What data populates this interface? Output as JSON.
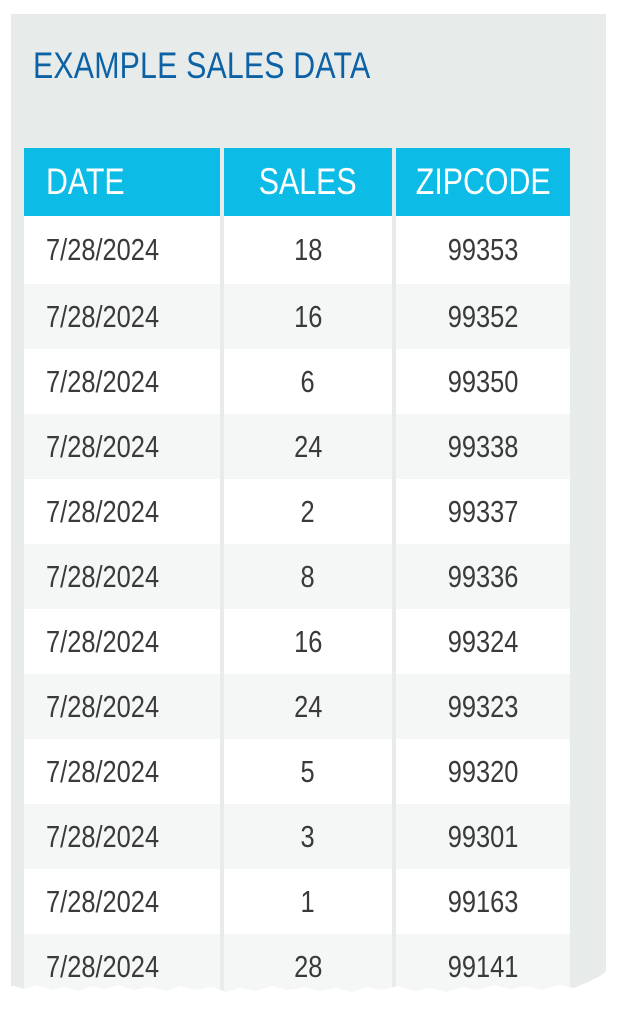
{
  "title": "EXAMPLE SALES DATA",
  "table": {
    "headers": {
      "date": "DATE",
      "sales": "SALES",
      "zipcode": "ZIPCODE"
    },
    "rows": [
      {
        "date": "7/28/2024",
        "sales": "18",
        "zipcode": "99353"
      },
      {
        "date": "7/28/2024",
        "sales": "16",
        "zipcode": "99352"
      },
      {
        "date": "7/28/2024",
        "sales": "6",
        "zipcode": "99350"
      },
      {
        "date": "7/28/2024",
        "sales": "24",
        "zipcode": "99338"
      },
      {
        "date": "7/28/2024",
        "sales": "2",
        "zipcode": "99337"
      },
      {
        "date": "7/28/2024",
        "sales": "8",
        "zipcode": "99336"
      },
      {
        "date": "7/28/2024",
        "sales": "16",
        "zipcode": "99324"
      },
      {
        "date": "7/28/2024",
        "sales": "24",
        "zipcode": "99323"
      },
      {
        "date": "7/28/2024",
        "sales": "5",
        "zipcode": "99320"
      },
      {
        "date": "7/28/2024",
        "sales": "3",
        "zipcode": "99301"
      },
      {
        "date": "7/28/2024",
        "sales": "1",
        "zipcode": "99163"
      },
      {
        "date": "7/28/2024",
        "sales": "28",
        "zipcode": "99141"
      }
    ]
  },
  "colors": {
    "title": "#0d62a6",
    "header_bg": "#0cbce6",
    "header_text": "#ffffff",
    "panel_bg": "#e7ecea",
    "cell_text": "#3a3a3a"
  }
}
